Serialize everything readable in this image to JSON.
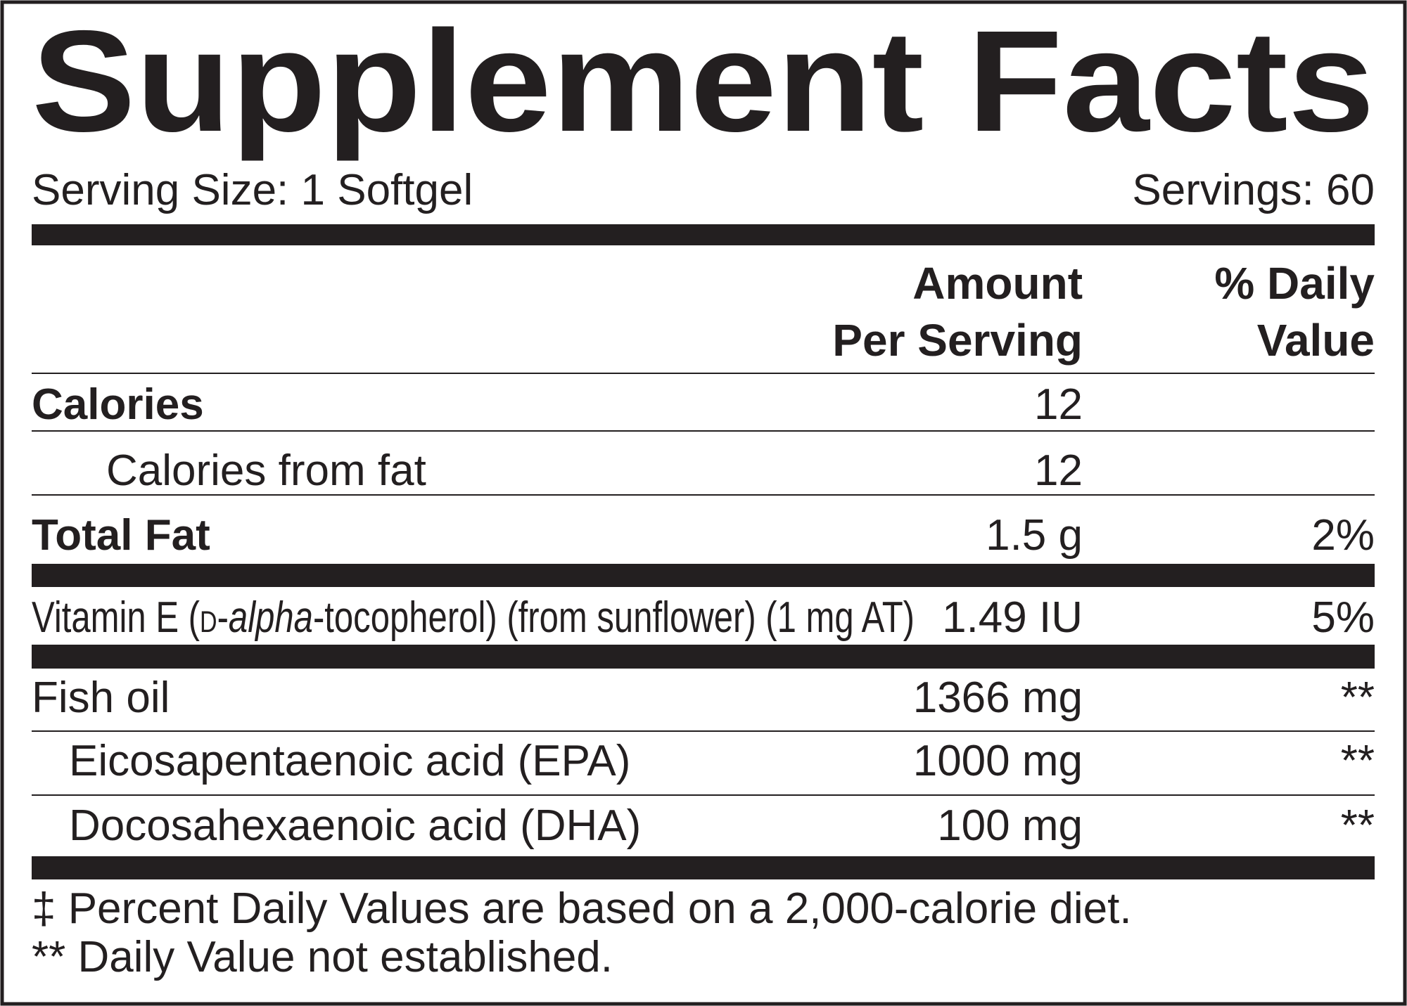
{
  "title": "Supplement Facts",
  "serving_size": "Serving Size: 1 Softgel",
  "servings": "Servings: 60",
  "columns": {
    "amount": [
      "Amount",
      "Per Serving"
    ],
    "daily_value": [
      "% Daily",
      "Value"
    ]
  },
  "rows": [
    {
      "name": "Calories",
      "amount": "12"
    },
    {
      "name": "Calories from fat",
      "amount": "12"
    },
    {
      "name": "Total Fat",
      "amount": "1.5 g",
      "daily_value": "2%"
    },
    {
      "name_parts": [
        "Vitamin E (",
        "d",
        "-",
        "alpha",
        "-tocopherol) (from sunflower) (1 mg AT)"
      ],
      "amount": "1.49 IU",
      "daily_value": "5%"
    },
    {
      "name": "Fish oil",
      "amount": "1366 mg",
      "daily_value": "**"
    },
    {
      "name": "Eicosapentaenoic acid (EPA)",
      "amount": "1000 mg",
      "daily_value": "**"
    },
    {
      "name": "Docosahexaenoic acid (DHA)",
      "amount": "100 mg",
      "daily_value": "**"
    }
  ],
  "footnotes": [
    "‡ Percent Daily Values are based on a 2,000-calorie diet.",
    "** Daily Value not established."
  ]
}
